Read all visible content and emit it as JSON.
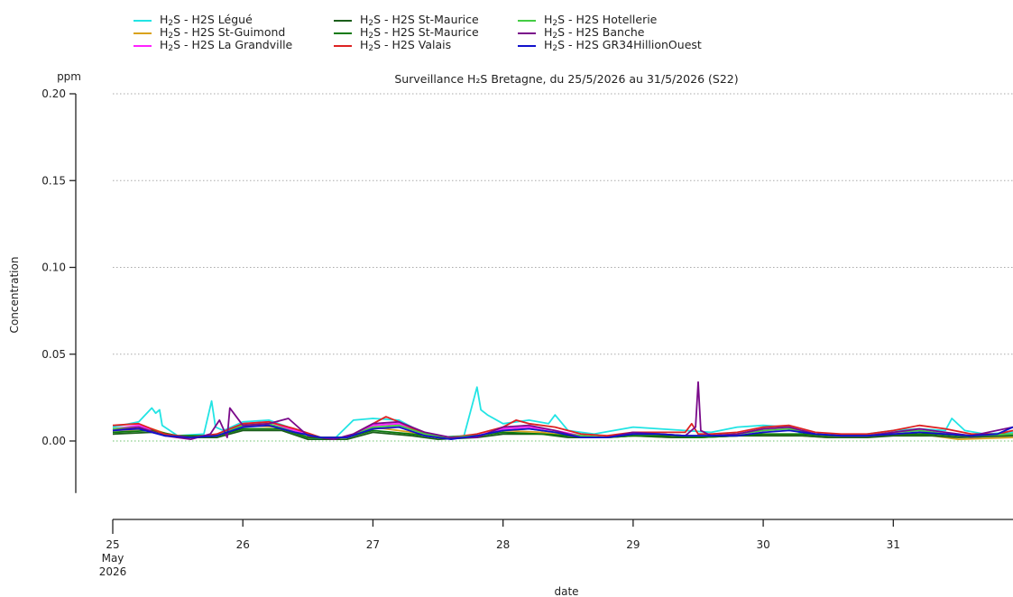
{
  "chart_data": {
    "type": "line",
    "title": "Surveillance H₂S Bretagne, du 25/5/2026 au 31/5/2026 (S22)",
    "xlabel": "date",
    "ylabel": "Concentration",
    "yunit": "ppm",
    "ylim": [
      -0.03,
      0.2
    ],
    "yticks": [
      "0.20",
      "0.15",
      "0.10",
      "0.05",
      "0.00"
    ],
    "ytick_values": [
      0.2,
      0.15,
      0.1,
      0.05,
      0.0
    ],
    "xlim": [
      25,
      31.92
    ],
    "xticks": [
      "25",
      "26",
      "27",
      "28",
      "29",
      "30",
      "31"
    ],
    "xtick_values": [
      25,
      26,
      27,
      28,
      29,
      30,
      31
    ],
    "xtick_month": "May",
    "xtick_year": "2026",
    "grid": "horizontal-dotted",
    "legend_position": "top",
    "series": [
      {
        "name": "H2S - H2S Légué",
        "color": "#22e4e4",
        "x": [
          25,
          25.2,
          25.3,
          25.33,
          25.36,
          25.38,
          25.5,
          25.7,
          25.76,
          25.79,
          25.85,
          26,
          26.2,
          26.35,
          26.5,
          26.7,
          26.85,
          27,
          27.2,
          27.35,
          27.5,
          27.7,
          27.8,
          27.83,
          27.88,
          28,
          28.2,
          28.35,
          28.4,
          28.5,
          28.7,
          29,
          29.2,
          29.4,
          29.6,
          29.8,
          30,
          30.2,
          30.3,
          30.5,
          30.7,
          31,
          31.2,
          31.4,
          31.45,
          31.55,
          31.7,
          31.92
        ],
        "values": [
          0.008,
          0.011,
          0.019,
          0.016,
          0.018,
          0.009,
          0.003,
          0.004,
          0.023,
          0.008,
          0.006,
          0.011,
          0.012,
          0.008,
          0.002,
          0.001,
          0.012,
          0.013,
          0.012,
          0.006,
          0.002,
          0.003,
          0.031,
          0.018,
          0.015,
          0.01,
          0.012,
          0.01,
          0.015,
          0.006,
          0.004,
          0.008,
          0.007,
          0.006,
          0.005,
          0.008,
          0.009,
          0.008,
          0.004,
          0.003,
          0.003,
          0.006,
          0.007,
          0.006,
          0.013,
          0.006,
          0.004,
          0.005
        ]
      },
      {
        "name": "H2S - H2S St-Guimond",
        "color": "#d9a21c",
        "x": [
          25,
          25.3,
          25.5,
          25.8,
          26,
          26.3,
          26.5,
          26.8,
          27,
          27.3,
          27.5,
          27.8,
          28,
          28.3,
          28.5,
          28.8,
          29,
          29.3,
          29.5,
          29.8,
          30,
          30.3,
          30.5,
          30.8,
          31,
          31.3,
          31.5,
          31.92
        ],
        "values": [
          0.006,
          0.007,
          0.002,
          0.003,
          0.009,
          0.008,
          0.002,
          0.002,
          0.008,
          0.005,
          0.002,
          0.003,
          0.006,
          0.005,
          0.003,
          0.002,
          0.003,
          0.002,
          0.002,
          0.003,
          0.004,
          0.003,
          0.002,
          0.002,
          0.004,
          0.003,
          0.001,
          0.002
        ]
      },
      {
        "name": "H2S - H2S La Grandville",
        "color": "#ff22ff",
        "x": [
          25,
          25.2,
          25.4,
          25.6,
          25.8,
          26,
          26.2,
          26.4,
          26.6,
          26.8,
          27,
          27.2,
          27.4,
          27.6,
          27.8,
          28,
          28.2,
          28.4,
          28.6,
          28.8,
          29,
          29.2,
          29.4,
          29.6,
          29.8,
          30,
          30.2,
          30.4,
          30.6,
          30.8,
          31,
          31.2,
          31.4,
          31.6,
          31.92
        ],
        "values": [
          0.007,
          0.009,
          0.004,
          0.002,
          0.003,
          0.01,
          0.011,
          0.006,
          0.002,
          0.002,
          0.009,
          0.01,
          0.004,
          0.002,
          0.003,
          0.007,
          0.008,
          0.006,
          0.003,
          0.002,
          0.004,
          0.004,
          0.003,
          0.003,
          0.004,
          0.006,
          0.007,
          0.004,
          0.003,
          0.003,
          0.005,
          0.006,
          0.004,
          0.002,
          0.004
        ]
      },
      {
        "name": "H2S - H2S St-Maurice",
        "color": "#1b5e1b",
        "x": [
          25,
          25.3,
          25.5,
          25.8,
          26,
          26.3,
          26.5,
          26.8,
          27,
          27.3,
          27.5,
          27.8,
          28,
          28.3,
          28.5,
          28.8,
          29,
          29.3,
          29.5,
          29.8,
          30,
          30.3,
          30.5,
          30.8,
          31,
          31.3,
          31.5,
          31.92
        ],
        "values": [
          0.004,
          0.005,
          0.002,
          0.002,
          0.006,
          0.006,
          0.001,
          0.001,
          0.005,
          0.003,
          0.001,
          0.002,
          0.004,
          0.004,
          0.002,
          0.002,
          0.003,
          0.002,
          0.002,
          0.003,
          0.003,
          0.003,
          0.002,
          0.002,
          0.003,
          0.003,
          0.002,
          0.003
        ]
      },
      {
        "name": "H2S - H2S St-Maurice",
        "color": "#0c7a0c",
        "x": [
          25,
          25.3,
          25.5,
          25.8,
          26,
          26.3,
          26.5,
          26.8,
          27,
          27.3,
          27.5,
          27.8,
          28,
          28.3,
          28.5,
          28.8,
          29,
          29.3,
          29.5,
          29.8,
          30,
          30.3,
          30.5,
          30.8,
          31,
          31.3,
          31.5,
          31.92
        ],
        "values": [
          0.005,
          0.006,
          0.003,
          0.003,
          0.007,
          0.007,
          0.002,
          0.002,
          0.006,
          0.004,
          0.002,
          0.003,
          0.005,
          0.004,
          0.003,
          0.002,
          0.003,
          0.003,
          0.002,
          0.003,
          0.004,
          0.004,
          0.003,
          0.003,
          0.004,
          0.004,
          0.003,
          0.004
        ]
      },
      {
        "name": "H2S - H2S Valais",
        "color": "#dd2222",
        "x": [
          25,
          25.2,
          25.4,
          25.6,
          25.8,
          26,
          26.2,
          26.4,
          26.6,
          26.8,
          27,
          27.1,
          27.2,
          27.4,
          27.6,
          27.8,
          28,
          28.1,
          28.2,
          28.4,
          28.6,
          28.8,
          29,
          29.2,
          29.4,
          29.45,
          29.5,
          29.6,
          29.8,
          30,
          30.2,
          30.4,
          30.6,
          30.8,
          31,
          31.2,
          31.4,
          31.6,
          31.8,
          31.92
        ],
        "values": [
          0.009,
          0.01,
          0.004,
          0.002,
          0.004,
          0.01,
          0.011,
          0.007,
          0.002,
          0.002,
          0.01,
          0.014,
          0.011,
          0.004,
          0.002,
          0.004,
          0.008,
          0.012,
          0.01,
          0.008,
          0.004,
          0.003,
          0.005,
          0.005,
          0.005,
          0.01,
          0.004,
          0.004,
          0.005,
          0.008,
          0.009,
          0.005,
          0.004,
          0.004,
          0.006,
          0.009,
          0.007,
          0.004,
          0.004,
          0.006
        ]
      },
      {
        "name": "H2S - H2S Hotellerie",
        "color": "#44cc44",
        "x": [
          25,
          25.2,
          25.4,
          25.6,
          25.8,
          26,
          26.2,
          26.4,
          26.6,
          26.8,
          27,
          27.2,
          27.4,
          27.6,
          27.8,
          28,
          28.2,
          28.4,
          28.6,
          28.8,
          29,
          29.2,
          29.4,
          29.6,
          29.8,
          30,
          30.2,
          30.4,
          30.6,
          30.8,
          31,
          31.2,
          31.4,
          31.6,
          31.92
        ],
        "values": [
          0.007,
          0.008,
          0.003,
          0.002,
          0.003,
          0.009,
          0.01,
          0.005,
          0.002,
          0.002,
          0.008,
          0.009,
          0.004,
          0.002,
          0.003,
          0.006,
          0.007,
          0.005,
          0.003,
          0.002,
          0.004,
          0.004,
          0.003,
          0.003,
          0.004,
          0.006,
          0.007,
          0.004,
          0.003,
          0.003,
          0.005,
          0.006,
          0.004,
          0.003,
          0.004
        ]
      },
      {
        "name": "H2S - H2S Banche",
        "color": "#7a0a8a",
        "x": [
          25,
          25.2,
          25.4,
          25.6,
          25.75,
          25.82,
          25.88,
          25.9,
          26,
          26.2,
          26.35,
          26.5,
          26.7,
          26.85,
          27,
          27.2,
          27.4,
          27.6,
          27.8,
          28,
          28.2,
          28.4,
          28.6,
          28.8,
          29,
          29.2,
          29.4,
          29.48,
          29.5,
          29.52,
          29.6,
          29.8,
          30,
          30.2,
          30.4,
          30.6,
          30.8,
          31,
          31.2,
          31.4,
          31.6,
          31.92
        ],
        "values": [
          0.006,
          0.008,
          0.003,
          0.001,
          0.004,
          0.012,
          0.002,
          0.019,
          0.009,
          0.01,
          0.013,
          0.003,
          0.001,
          0.004,
          0.01,
          0.011,
          0.005,
          0.002,
          0.002,
          0.008,
          0.009,
          0.006,
          0.002,
          0.002,
          0.005,
          0.004,
          0.003,
          0.008,
          0.034,
          0.006,
          0.003,
          0.004,
          0.007,
          0.008,
          0.004,
          0.003,
          0.003,
          0.005,
          0.007,
          0.005,
          0.003,
          0.008
        ]
      },
      {
        "name": "H2S - H2S GR34HillionOuest",
        "color": "#1111cc",
        "x": [
          25,
          25.2,
          25.4,
          25.6,
          25.8,
          26,
          26.2,
          26.4,
          26.6,
          26.8,
          27,
          27.2,
          27.4,
          27.6,
          27.8,
          28,
          28.2,
          28.4,
          28.6,
          28.8,
          29,
          29.2,
          29.4,
          29.6,
          29.8,
          30,
          30.2,
          30.4,
          30.6,
          30.8,
          31,
          31.2,
          31.4,
          31.6,
          31.8,
          31.92
        ],
        "values": [
          0.006,
          0.007,
          0.003,
          0.002,
          0.003,
          0.008,
          0.009,
          0.005,
          0.002,
          0.002,
          0.007,
          0.008,
          0.003,
          0.001,
          0.003,
          0.006,
          0.007,
          0.005,
          0.002,
          0.002,
          0.004,
          0.004,
          0.003,
          0.003,
          0.003,
          0.005,
          0.006,
          0.004,
          0.003,
          0.003,
          0.004,
          0.005,
          0.004,
          0.003,
          0.004,
          0.008
        ]
      }
    ]
  }
}
